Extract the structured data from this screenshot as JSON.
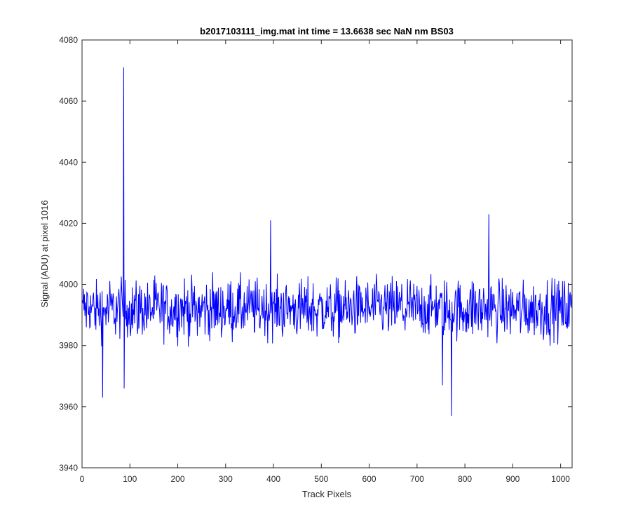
{
  "chart_data": {
    "type": "line",
    "title": "b2017103111_img.mat int time = 13.6638 sec  NaN nm BS03",
    "xlabel": "Track Pixels",
    "ylabel": "Signal (ADU) at pixel 1016",
    "xlim": [
      0,
      1024
    ],
    "ylim": [
      3940,
      4080
    ],
    "xticks": [
      0,
      100,
      200,
      300,
      400,
      500,
      600,
      700,
      800,
      900,
      1000
    ],
    "yticks": [
      3940,
      3960,
      3980,
      4000,
      4020,
      4040,
      4060,
      4080
    ],
    "grid": false,
    "line_color": "#0000ff",
    "series": [
      {
        "x_start": 1,
        "x_step": 1,
        "count": 1024,
        "baseline": 3992,
        "noise_min": 3963,
        "noise_max": 4018,
        "notable_points": [
          {
            "x": 43,
            "y": 3963
          },
          {
            "x": 87,
            "y": 4071
          },
          {
            "x": 88,
            "y": 3966
          },
          {
            "x": 394,
            "y": 4021
          },
          {
            "x": 753,
            "y": 3967
          },
          {
            "x": 772,
            "y": 3957
          },
          {
            "x": 850,
            "y": 4023
          }
        ]
      }
    ]
  }
}
